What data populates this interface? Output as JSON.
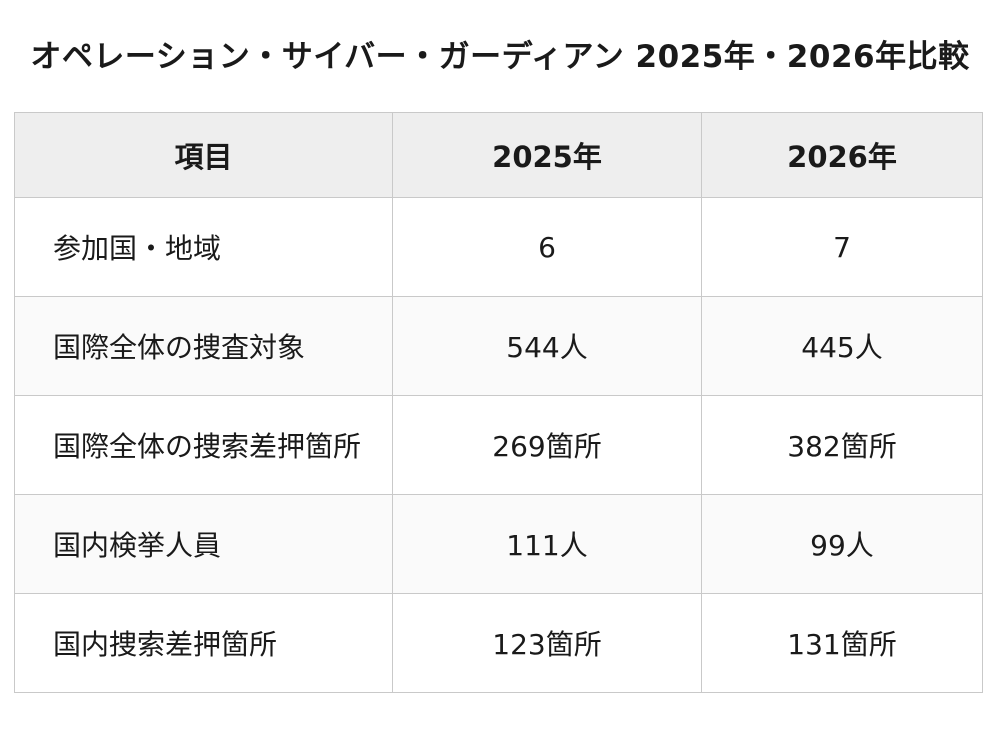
{
  "title": "オペレーション・サイバー・ガーディアン 2025年・2026年比較",
  "table": {
    "headers": [
      "項目",
      "2025年",
      "2026年"
    ],
    "rows": [
      {
        "item": "参加国・地域",
        "y2025": "6",
        "y2026": "7"
      },
      {
        "item": "国際全体の捜査対象",
        "y2025": "544人",
        "y2026": "445人"
      },
      {
        "item": "国際全体の捜索差押箇所",
        "y2025": "269箇所",
        "y2026": "382箇所"
      },
      {
        "item": "国内検挙人員",
        "y2025": "111人",
        "y2026": "99人"
      },
      {
        "item": "国内捜索差押箇所",
        "y2025": "123箇所",
        "y2026": "131箇所"
      }
    ]
  }
}
